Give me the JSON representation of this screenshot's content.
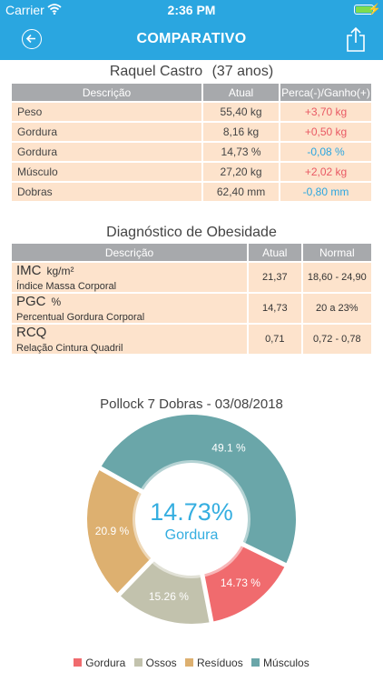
{
  "status": {
    "carrier": "Carrier",
    "time": "2:36 PM"
  },
  "nav": {
    "title": "COMPARATIVO"
  },
  "person": {
    "name": "Raquel Castro",
    "age": "(37 anos)"
  },
  "comparison": {
    "headers": [
      "Descrição",
      "Atual",
      "Perca(-)/Ganho(+)"
    ],
    "rows": [
      {
        "label": "Peso",
        "value": "55,40 kg",
        "delta": "+3,70 kg"
      },
      {
        "label": "Gordura",
        "value": "8,16 kg",
        "delta": "+0,50 kg"
      },
      {
        "label": "Gordura",
        "value": "14,73 %",
        "delta": "-0,08 %"
      },
      {
        "label": "Músculo",
        "value": "27,20 kg",
        "delta": "+2,02 kg"
      },
      {
        "label": "Dobras",
        "value": "62,40 mm",
        "delta": "-0,80 mm"
      }
    ]
  },
  "obesity": {
    "title": "Diagnóstico de Obesidade",
    "headers": [
      "Descrição",
      "Atual",
      "Normal"
    ],
    "rows": [
      {
        "abbr": "IMC",
        "unit": "kg/m²",
        "name": "Índice Massa Corporal",
        "value": "21,37",
        "normal": "18,60 - 24,90"
      },
      {
        "abbr": "PGC",
        "unit": "%",
        "name": "Percentual Gordura Corporal",
        "value": "14,73",
        "normal": "20 a 23%"
      },
      {
        "abbr": "RCQ",
        "unit": "",
        "name": "Relação Cintura Quadril",
        "value": "0,71",
        "normal": "0,72 - 0,78"
      }
    ]
  },
  "chart_data": {
    "type": "pie",
    "title": "Pollock 7 Dobras - 03/08/2018",
    "center_value": "14.73%",
    "center_label": "Gordura",
    "slices": [
      {
        "name": "Gordura",
        "value": 14.73,
        "label": "14.73 %",
        "color": "#f06b6e"
      },
      {
        "name": "Ossos",
        "value": 15.26,
        "label": "15.26 %",
        "color": "#c2c2ad"
      },
      {
        "name": "Resíduos",
        "value": 20.9,
        "label": "20.9 %",
        "color": "#ddb070"
      },
      {
        "name": "Músculos",
        "value": 49.1,
        "label": "49.1 %",
        "color": "#6aa6a9"
      }
    ],
    "legend_position": "bottom"
  }
}
